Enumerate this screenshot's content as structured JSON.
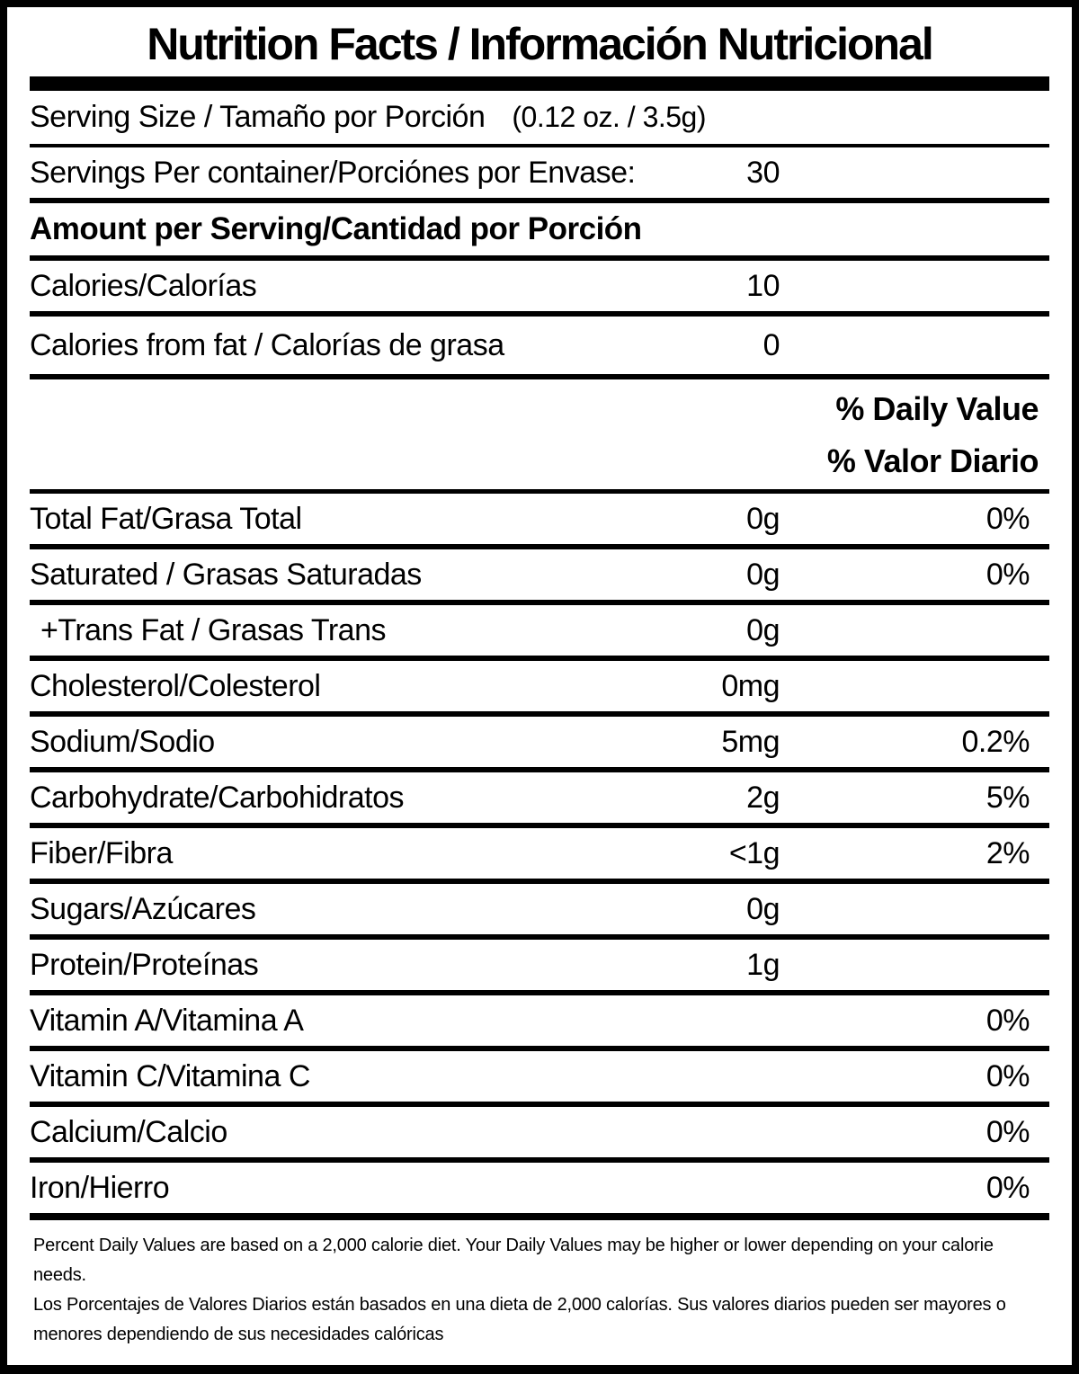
{
  "colors": {
    "ink": "#000000",
    "paper": "#ffffff"
  },
  "title": "Nutrition Facts / Información Nutricional",
  "serving_size": {
    "label": "Serving Size / Tamaño por Porción",
    "value": "(0.12 oz. / 3.5g)"
  },
  "servings_per_container": {
    "label": "Servings Per container/Porciónes por Envase:",
    "value": "30"
  },
  "amount_per_serving_heading": "Amount per Serving/Cantidad por Porción",
  "calories": {
    "label": "Calories/Calorías",
    "value": "10"
  },
  "calories_from_fat": {
    "label": "Calories from fat / Calorías de grasa",
    "value": "0"
  },
  "daily_value_header": {
    "en": "% Daily Value",
    "es": "% Valor Diario"
  },
  "nutrients": [
    {
      "label": "Total Fat/Grasa Total",
      "amount": "0g",
      "pct": "0%"
    },
    {
      "label": "Saturated / Grasas Saturadas",
      "amount": "0g",
      "pct": "0%"
    },
    {
      "label": "+Trans Fat / Grasas Trans",
      "amount": "0g",
      "pct": ""
    },
    {
      "label": "Cholesterol/Colesterol",
      "amount": "0mg",
      "pct": ""
    },
    {
      "label": "Sodium/Sodio",
      "amount": "5mg",
      "pct": "0.2%"
    },
    {
      "label": "Carbohydrate/Carbohidratos",
      "amount": "2g",
      "pct": "5%"
    },
    {
      "label": "Fiber/Fibra",
      "amount": "<1g",
      "pct": "2%"
    },
    {
      "label": "Sugars/Azúcares",
      "amount": "0g",
      "pct": ""
    },
    {
      "label": "Protein/Proteínas",
      "amount": "1g",
      "pct": ""
    },
    {
      "label": "Vitamin A/Vitamina A",
      "amount": "",
      "pct": "0%"
    },
    {
      "label": "Vitamin C/Vitamina C",
      "amount": "",
      "pct": "0%"
    },
    {
      "label": "Calcium/Calcio",
      "amount": "",
      "pct": "0%"
    },
    {
      "label": "Iron/Hierro",
      "amount": "",
      "pct": "0%"
    }
  ],
  "footnotes": {
    "en": "Percent Daily Values are based on a 2,000 calorie diet. Your Daily Values may be higher or lower depending on your calorie needs.",
    "es": "Los Porcentajes de Valores Diarios están basados en una dieta de 2,000 calorías. Sus valores diarios pueden ser mayores o menores dependiendo de sus necesidades calóricas"
  }
}
